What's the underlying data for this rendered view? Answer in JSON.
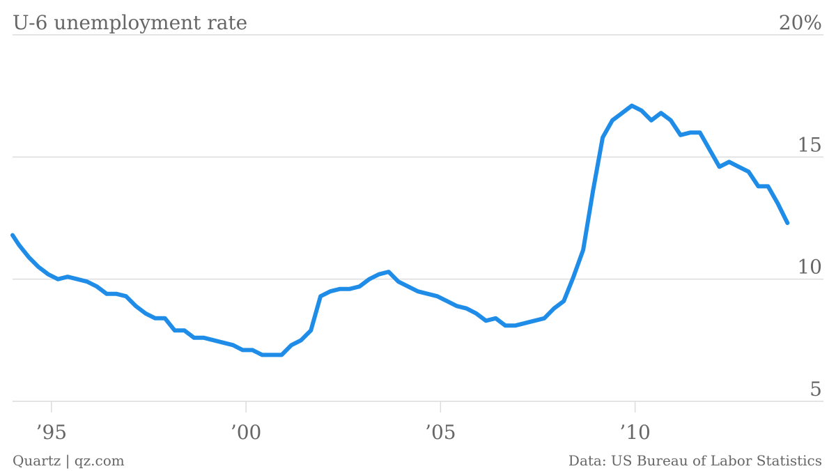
{
  "chart_data": {
    "type": "line",
    "title": "U-6 unemployment rate",
    "ylim": [
      5,
      20
    ],
    "y_tick_labels": [
      "20%",
      "15",
      "10",
      "5"
    ],
    "y_ticks": [
      20,
      15,
      10,
      5
    ],
    "x_ticks": [
      1995,
      2000,
      2005,
      2010
    ],
    "x_tick_labels": [
      "’95",
      "’00",
      "’05",
      "’10"
    ],
    "xlim": [
      "1994-01",
      "2014-01"
    ],
    "grid": true,
    "color": "#1f8de8",
    "series": [
      {
        "points": [
          [
            "1994-01",
            11.8
          ],
          [
            "1994-03",
            11.4
          ],
          [
            "1994-06",
            10.9
          ],
          [
            "1994-09",
            10.5
          ],
          [
            "1994-12",
            10.2
          ],
          [
            "1995-03",
            10.0
          ],
          [
            "1995-06",
            10.1
          ],
          [
            "1995-09",
            10.0
          ],
          [
            "1995-12",
            9.9
          ],
          [
            "1996-03",
            9.7
          ],
          [
            "1996-06",
            9.4
          ],
          [
            "1996-09",
            9.4
          ],
          [
            "1996-12",
            9.3
          ],
          [
            "1997-03",
            8.9
          ],
          [
            "1997-06",
            8.6
          ],
          [
            "1997-09",
            8.4
          ],
          [
            "1997-12",
            8.4
          ],
          [
            "1998-03",
            7.9
          ],
          [
            "1998-06",
            7.9
          ],
          [
            "1998-09",
            7.6
          ],
          [
            "1998-12",
            7.6
          ],
          [
            "1999-03",
            7.5
          ],
          [
            "1999-06",
            7.4
          ],
          [
            "1999-09",
            7.3
          ],
          [
            "1999-12",
            7.1
          ],
          [
            "2000-03",
            7.1
          ],
          [
            "2000-06",
            6.9
          ],
          [
            "2000-09",
            6.9
          ],
          [
            "2000-12",
            6.9
          ],
          [
            "2001-03",
            7.3
          ],
          [
            "2001-06",
            7.5
          ],
          [
            "2001-09",
            7.9
          ],
          [
            "2001-12",
            9.3
          ],
          [
            "2002-03",
            9.5
          ],
          [
            "2002-06",
            9.6
          ],
          [
            "2002-09",
            9.6
          ],
          [
            "2002-12",
            9.7
          ],
          [
            "2003-03",
            10.0
          ],
          [
            "2003-06",
            10.2
          ],
          [
            "2003-09",
            10.3
          ],
          [
            "2003-12",
            9.9
          ],
          [
            "2004-03",
            9.7
          ],
          [
            "2004-06",
            9.5
          ],
          [
            "2004-09",
            9.4
          ],
          [
            "2004-12",
            9.3
          ],
          [
            "2005-03",
            9.1
          ],
          [
            "2005-06",
            8.9
          ],
          [
            "2005-09",
            8.8
          ],
          [
            "2005-12",
            8.6
          ],
          [
            "2006-03",
            8.3
          ],
          [
            "2006-06",
            8.4
          ],
          [
            "2006-09",
            8.1
          ],
          [
            "2006-12",
            8.1
          ],
          [
            "2007-03",
            8.2
          ],
          [
            "2007-06",
            8.3
          ],
          [
            "2007-09",
            8.4
          ],
          [
            "2007-12",
            8.8
          ],
          [
            "2008-03",
            9.1
          ],
          [
            "2008-06",
            10.1
          ],
          [
            "2008-09",
            11.2
          ],
          [
            "2008-12",
            13.6
          ],
          [
            "2009-03",
            15.8
          ],
          [
            "2009-06",
            16.5
          ],
          [
            "2009-09",
            16.8
          ],
          [
            "2009-12",
            17.1
          ],
          [
            "2010-03",
            16.9
          ],
          [
            "2010-06",
            16.5
          ],
          [
            "2010-09",
            16.8
          ],
          [
            "2010-12",
            16.5
          ],
          [
            "2011-03",
            15.9
          ],
          [
            "2011-06",
            16.0
          ],
          [
            "2011-09",
            16.0
          ],
          [
            "2011-12",
            15.3
          ],
          [
            "2012-03",
            14.6
          ],
          [
            "2012-06",
            14.8
          ],
          [
            "2012-09",
            14.6
          ],
          [
            "2012-12",
            14.4
          ],
          [
            "2013-03",
            13.8
          ],
          [
            "2013-06",
            13.8
          ],
          [
            "2013-09",
            13.1
          ],
          [
            "2013-12",
            12.3
          ]
        ]
      }
    ]
  },
  "footer": {
    "source_left": "Quartz | qz.com",
    "source_right": "Data: US Bureau of Labor Statistics"
  }
}
